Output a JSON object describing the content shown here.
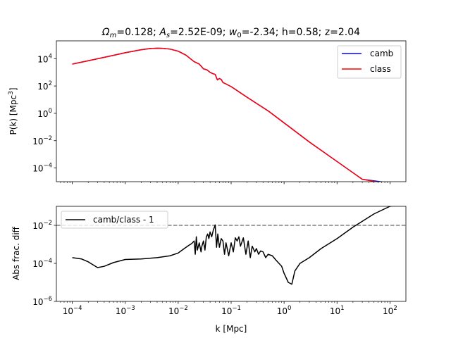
{
  "chart_data": [
    {
      "type": "line",
      "title_parts": {
        "omega_sym": "Ω",
        "omega_sub": "m",
        "omega_val": "=0.128; ",
        "as_sym": "A",
        "as_sub": "s",
        "as_val": "=2.52E-09; ",
        "w_sym": "w",
        "w_sub": "0",
        "w_val": "=-2.34; h=0.58; z=2.04"
      },
      "xlabel": "",
      "ylabel_main": "P(k) [Mpc",
      "ylabel_sup": "3",
      "ylabel_end": "]",
      "xscale": "log",
      "yscale": "log",
      "xlim": [
        5e-05,
        200
      ],
      "ylim": [
        1e-05,
        200000
      ],
      "grid": false,
      "legend_position": "upper right",
      "x_ticks": [
        0.0001,
        0.001,
        0.01,
        0.1,
        1,
        10,
        100
      ],
      "y_ticks": [
        {
          "base": "10",
          "exp": "4",
          "value": 10000
        },
        {
          "base": "10",
          "exp": "2",
          "value": 100
        },
        {
          "base": "10",
          "exp": "0",
          "value": 1
        },
        {
          "base": "10",
          "exp": "−2",
          "value": 0.01
        },
        {
          "base": "10",
          "exp": "−4",
          "value": 0.0001
        }
      ],
      "series": [
        {
          "name": "camb",
          "color": "#0000ff",
          "x": [
            0.0001,
            0.0002,
            0.0005,
            0.001,
            0.002,
            0.003,
            0.004,
            0.005,
            0.007,
            0.01,
            0.014,
            0.02,
            0.025,
            0.03,
            0.035,
            0.04,
            0.045,
            0.05,
            0.055,
            0.06,
            0.065,
            0.07,
            0.08,
            0.1,
            0.2,
            0.5,
            1,
            3,
            10,
            30,
            100
          ],
          "y": [
            4000,
            7000,
            15000,
            27000,
            45000,
            55000,
            58000,
            57000,
            50000,
            35000,
            18000,
            6000,
            4000,
            1800,
            1500,
            1000,
            800,
            700,
            280,
            350,
            300,
            180,
            140,
            90,
            15,
            1.5,
            0.2,
            0.008,
            0.0003,
            1.5e-05,
            8e-06
          ]
        },
        {
          "name": "class",
          "color": "#ff0000",
          "x": [
            0.0001,
            0.0002,
            0.0005,
            0.001,
            0.002,
            0.003,
            0.004,
            0.005,
            0.007,
            0.01,
            0.014,
            0.02,
            0.025,
            0.03,
            0.035,
            0.04,
            0.045,
            0.05,
            0.055,
            0.06,
            0.065,
            0.07,
            0.08,
            0.1,
            0.2,
            0.5,
            1,
            3,
            10,
            30,
            100
          ],
          "y": [
            4000,
            7000,
            15000,
            27000,
            45000,
            55000,
            58000,
            57000,
            50000,
            35000,
            18000,
            6000,
            4000,
            1800,
            1500,
            1000,
            800,
            700,
            280,
            350,
            300,
            180,
            140,
            90,
            15,
            1.5,
            0.2,
            0.008,
            0.0003,
            1.5e-05,
            6.5e-06
          ]
        }
      ]
    },
    {
      "type": "line",
      "xlabel": "k [Mpc]",
      "ylabel": "Abs frac. diff",
      "xscale": "log",
      "yscale": "log",
      "xlim": [
        5e-05,
        200
      ],
      "ylim": [
        1e-06,
        0.1
      ],
      "grid": false,
      "legend_position": "upper left",
      "x_ticks": [
        {
          "base": "10",
          "exp": "−4",
          "value": 0.0001
        },
        {
          "base": "10",
          "exp": "−3",
          "value": 0.001
        },
        {
          "base": "10",
          "exp": "−2",
          "value": 0.01
        },
        {
          "base": "10",
          "exp": "−1",
          "value": 0.1
        },
        {
          "base": "10",
          "exp": "0",
          "value": 1
        },
        {
          "base": "10",
          "exp": "1",
          "value": 10
        },
        {
          "base": "10",
          "exp": "2",
          "value": 100
        }
      ],
      "y_ticks": [
        {
          "base": "10",
          "exp": "−2",
          "value": 0.01
        },
        {
          "base": "10",
          "exp": "−4",
          "value": 0.0001
        },
        {
          "base": "10",
          "exp": "−6",
          "value": 1e-06
        }
      ],
      "reference_line": {
        "y": 0.01,
        "color": "#808080",
        "style": "dashed"
      },
      "series": [
        {
          "name": "camb/class - 1",
          "color": "#000000",
          "x": [
            0.0001,
            0.00015,
            0.0002,
            0.0003,
            0.0004,
            0.0006,
            0.001,
            0.002,
            0.004,
            0.007,
            0.01,
            0.013,
            0.016,
            0.018,
            0.02,
            0.021,
            0.022,
            0.023,
            0.025,
            0.027,
            0.028,
            0.03,
            0.032,
            0.034,
            0.036,
            0.038,
            0.04,
            0.043,
            0.046,
            0.05,
            0.053,
            0.056,
            0.06,
            0.065,
            0.07,
            0.075,
            0.08,
            0.09,
            0.1,
            0.11,
            0.12,
            0.13,
            0.14,
            0.15,
            0.17,
            0.19,
            0.21,
            0.23,
            0.25,
            0.28,
            0.3,
            0.33,
            0.36,
            0.4,
            0.45,
            0.5,
            0.6,
            0.7,
            0.8,
            0.9,
            1.0,
            1.2,
            1.4,
            1.6,
            2,
            3,
            5,
            10,
            20,
            50,
            100,
            150
          ],
          "y": [
            0.0002,
            0.00017,
            0.00012,
            6e-05,
            7e-05,
            0.00011,
            0.00016,
            0.00017,
            0.0002,
            0.00025,
            0.00035,
            0.0006,
            0.0009,
            0.0011,
            0.0015,
            0.0003,
            0.0025,
            0.0005,
            0.0012,
            0.0004,
            0.0008,
            0.0015,
            0.0005,
            0.0025,
            0.0035,
            0.002,
            0.0045,
            0.0025,
            0.0055,
            0.0105,
            0.0007,
            0.0035,
            0.0007,
            0.002,
            0.0015,
            0.0003,
            0.0012,
            0.00025,
            0.0012,
            0.0004,
            0.0022,
            0.0015,
            0.0025,
            0.0008,
            0.0022,
            0.0003,
            0.0015,
            0.0002,
            0.0008,
            0.0004,
            0.0006,
            0.0003,
            0.00045,
            0.0004,
            0.0002,
            0.0003,
            0.00025,
            0.00015,
            0.0001,
            7e-05,
            3e-05,
            1e-05,
            8e-06,
            4e-05,
            0.0001,
            0.0002,
            0.0006,
            0.002,
            0.008,
            0.04,
            0.1,
            0.12
          ]
        }
      ]
    }
  ]
}
